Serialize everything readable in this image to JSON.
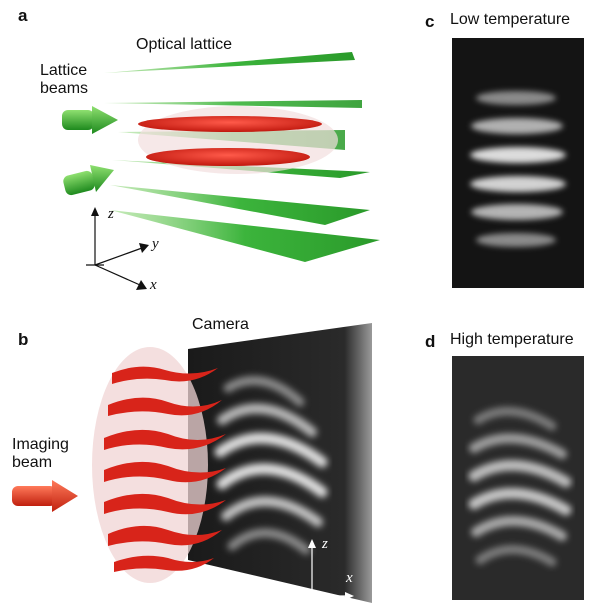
{
  "panels": {
    "a": {
      "letter": "a",
      "title": "Optical lattice",
      "beam_label_line1": "Lattice",
      "beam_label_line2": "beams",
      "axes": {
        "z": "z",
        "y": "y",
        "x": "x"
      }
    },
    "b": {
      "letter": "b",
      "camera_label": "Camera",
      "beam_label_line1": "Imaging",
      "beam_label_line2": "beam",
      "axes": {
        "z": "z",
        "x": "x"
      }
    },
    "c": {
      "letter": "c",
      "title": "Low temperature"
    },
    "d": {
      "letter": "d",
      "title": "High temperature"
    }
  },
  "colors": {
    "lattice_green": "#3cb43c",
    "atom_red": "#e0281e",
    "cloud_pink": "#f0d8d8",
    "image_dark": "#111111",
    "fringe_light": "#e8e8e8"
  },
  "icons": {
    "lattice_beam_arrows": "arrow-right-icon",
    "imaging_beam_arrow": "arrow-right-icon"
  }
}
